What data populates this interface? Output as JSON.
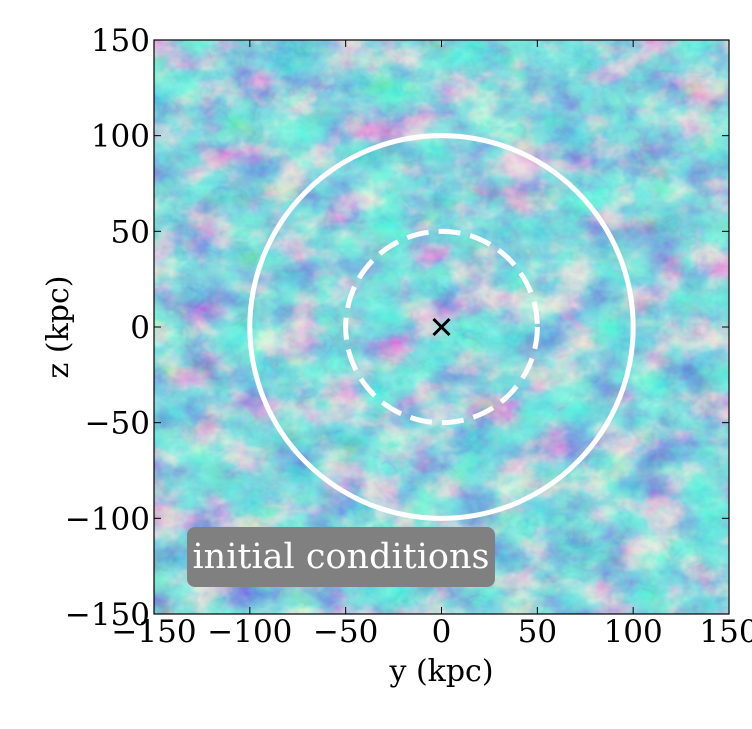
{
  "chart_data": {
    "type": "heatmap",
    "title": "",
    "xlabel": "y  (kpc)",
    "ylabel": "z  (kpc)",
    "xlim": [
      -150,
      150
    ],
    "ylim": [
      -150,
      150
    ],
    "xticks": [
      -150,
      -100,
      -50,
      0,
      50,
      100,
      150
    ],
    "yticks": [
      -150,
      -100,
      -50,
      0,
      50,
      100,
      150
    ],
    "xtick_labels": [
      "−150",
      "−100",
      "−50",
      "0",
      "50",
      "100",
      "150"
    ],
    "ytick_labels": [
      "−150",
      "−100",
      "−50",
      "0",
      "50",
      "100",
      "150"
    ],
    "colormap": "YlGnBu",
    "colormap_colors": [
      "#081d58",
      "#225ea8",
      "#41b6c4",
      "#c7e9b4",
      "#ffffd9"
    ],
    "grid": false,
    "circles": [
      {
        "center": [
          0,
          0
        ],
        "radius": 100,
        "style": "solid",
        "color": "#ffffff"
      },
      {
        "center": [
          0,
          0
        ],
        "radius": 50,
        "style": "dashed",
        "color": "#ffffff"
      }
    ],
    "center_marker": {
      "x": 0,
      "y": 0,
      "symbol": "x",
      "color": "#000000"
    },
    "annotation": {
      "text": "initial conditions",
      "box_color": "#808080",
      "text_color": "#ffffff"
    }
  }
}
